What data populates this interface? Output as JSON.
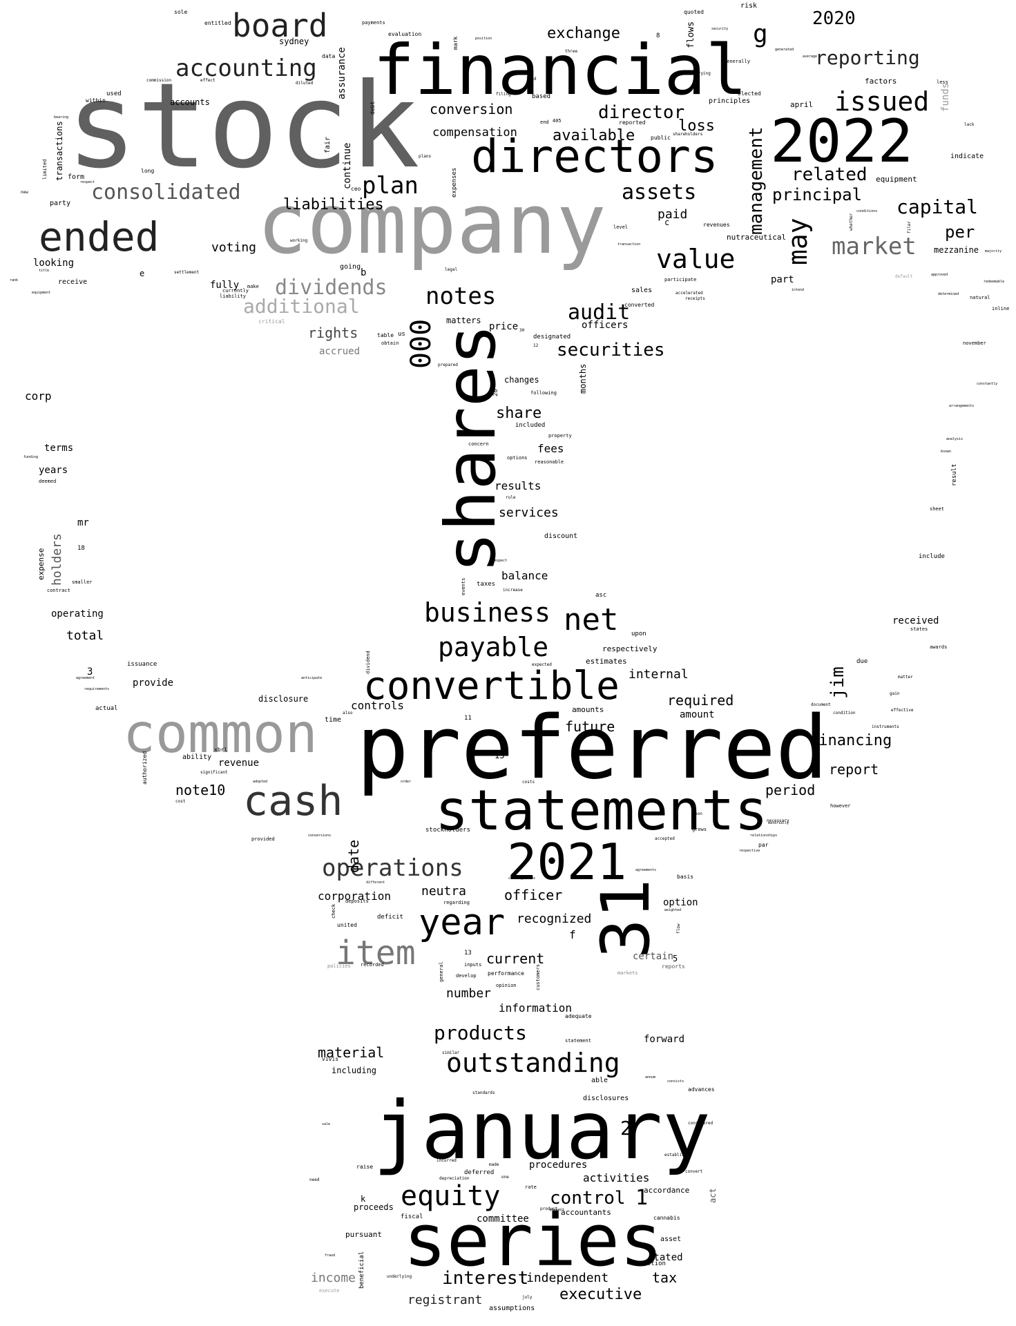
{
  "colors": {
    "background": "#ffffff",
    "text_black": "#000000",
    "text_dark": "#222222",
    "text_mid": "#666666",
    "text_light": "#999999"
  },
  "words": {
    "stock": "stock",
    "company": "company",
    "financial": "financial",
    "directors": "directors",
    "y2022": "2022",
    "preferred": "preferred",
    "january": "january",
    "series": "series",
    "shares": "shares",
    "statements": "statements",
    "y2021": "2021",
    "n31": "31",
    "common": "common",
    "convertible": "convertible",
    "cash": "cash",
    "ended": "ended",
    "board": "board",
    "accounting": "accounting",
    "consolidated": "consolidated",
    "plan": "plan",
    "liabilities": "liabilities",
    "dividends": "dividends",
    "additional": "additional",
    "notes": "notes",
    "value": "value",
    "market": "market",
    "may": "may",
    "management": "management",
    "issued": "issued",
    "reporting": "reporting",
    "y2020": "2020",
    "g": "g",
    "exchange": "exchange",
    "conversion": "conversion",
    "compensation": "compensation",
    "available": "available",
    "director": "director",
    "loss": "loss",
    "assets": "assets",
    "related": "related",
    "principal": "principal",
    "capital": "capital",
    "per": "per",
    "paid": "paid",
    "voting": "voting",
    "fully": "fully",
    "rights": "rights",
    "accrued": "accrued",
    "audit": "audit",
    "securities": "securities",
    "n000": "000",
    "business": "business",
    "net": "net",
    "payable": "payable",
    "item": "item",
    "year": "year",
    "operations": "operations",
    "equity": "equity",
    "outstanding": "outstanding",
    "products": "products",
    "material": "material",
    "control": "control",
    "interest": "interest",
    "executive": "executive",
    "registrant": "registrant",
    "income": "income",
    "tax": "tax",
    "independent": "independent",
    "financing": "financing",
    "report": "report",
    "period": "period",
    "jim": "jim",
    "required": "required",
    "amount": "amount",
    "internal": "internal",
    "future": "future",
    "controls": "controls",
    "disclosure": "disclosure",
    "note10": "note10",
    "revenue": "revenue",
    "date": "date",
    "corporation": "corporation",
    "neutra": "neutra",
    "officer": "officer",
    "recognized": "recognized",
    "current": "current",
    "number": "number",
    "information": "information",
    "forward": "forward",
    "procedures": "procedures",
    "activities": "activities",
    "committee": "committee",
    "proceeds": "proceeds",
    "stated": "stated",
    "mezzanine": "mezzanine",
    "part": "part",
    "sales": "sales",
    "corp": "corp",
    "terms": "terms",
    "years": "years",
    "holders": "holders",
    "mr": "mr",
    "operating": "operating",
    "total": "total",
    "provide": "provide",
    "results": "results",
    "services": "services",
    "share": "share",
    "fees": "fees",
    "balance": "balance",
    "months": "months",
    "changes": "changes",
    "officers": "officers",
    "price": "price",
    "matters": "matters",
    "looking": "looking",
    "accounts": "accounts",
    "continue": "continue",
    "assurance": "assurance",
    "sydney": "sydney",
    "received": "received",
    "option": "option",
    "certain": "certain",
    "including": "including",
    "accordance": "accordance",
    "accountants": "accountants",
    "transactions": "transactions",
    "expense": "expense",
    "funds": "funds",
    "nutraceutical": "nutraceutical",
    "principles": "principles",
    "factors": "factors",
    "april": "april",
    "equipment": "equipment",
    "indicate": "indicate",
    "risk": "risk",
    "quoted": "quoted",
    "flows": "flows",
    "mark": "mark",
    "evaluation": "evaluation",
    "payments": "payments",
    "entitled": "entitled",
    "sole": "sole",
    "data": "data",
    "used": "used",
    "within": "within",
    "form": "form",
    "long": "long",
    "party": "party",
    "receive": "receive",
    "fair": "fair",
    "ceo": "ceo",
    "debt": "debt",
    "based": "based",
    "table": "table",
    "us": "us",
    "obtain": "obtain",
    "designated": "designated",
    "included": "included",
    "options": "options",
    "reasonable": "reasonable",
    "concern": "concern",
    "discount": "discount",
    "taxes": "taxes",
    "events": "events",
    "asc": "asc",
    "estimates": "estimates",
    "respectively": "respectively",
    "upon": "upon",
    "amounts": "amounts",
    "due": "due",
    "awards": "awards",
    "states": "states",
    "include": "include",
    "sheet": "sheet",
    "result": "result",
    "november": "november",
    "inline": "inline",
    "natural": "natural",
    "stockholders": "stockholders",
    "time": "time",
    "ability": "ability",
    "xbrl": "xbrl",
    "authorized": "authorized",
    "issuance": "issuance",
    "actual": "actual",
    "deficit": "deficit",
    "united": "united",
    "deposits": "deposits",
    "regarding": "regarding",
    "vivis": "vivis",
    "able": "able",
    "disclosures": "disclosures",
    "advances": "advances",
    "raise": "raise",
    "deferred": "deferred",
    "fiscal": "fiscal",
    "pursuant": "pursuant",
    "beneficial": "beneficial",
    "assumptions": "assumptions",
    "cannabis": "cannabis",
    "asset": "asset",
    "section": "section",
    "act": "act",
    "reports": "reports",
    "basis": "basis",
    "performance": "performance",
    "opinion": "opinion",
    "customers": "customers",
    "inputs": "inputs",
    "develop": "develop",
    "general": "general",
    "check": "check",
    "recorded": "recorded",
    "policies": "policies",
    "markets": "markets",
    "f": "f",
    "k": "k",
    "b": "b",
    "c": "c",
    "e": "e",
    "n1": "1",
    "n2": "2",
    "n3": "3",
    "n5": "5",
    "n11": "11",
    "n13": "13",
    "n15": "15",
    "n18": "18",
    "n20": "20",
    "n30": "30",
    "n12": "12",
    "n8": "8",
    "n405": "405",
    "going": "going",
    "make": "make",
    "currently": "currently",
    "liability": "liability",
    "settlement": "settlement",
    "critical": "critical",
    "commission": "commission",
    "effect": "effect",
    "limited": "limited",
    "contract": "contract",
    "smaller": "smaller",
    "deemed": "deemed",
    "funding": "funding",
    "public": "public",
    "reported": "reported",
    "generally": "generally",
    "elected": "elected",
    "carrying": "carrying",
    "revenues": "revenues",
    "level": "level",
    "participate": "participate",
    "converted": "converted",
    "accelerated": "accelerated",
    "receipts": "receipts",
    "less": "less",
    "lack": "lack",
    "approved": "approved",
    "redeemable": "redeemable",
    "determined": "determined",
    "default": "default",
    "following": "following",
    "property": "property",
    "rule": "rule",
    "expenses": "expenses",
    "plans": "plans",
    "filing": "filing",
    "end": "end",
    "legal": "legal",
    "working": "working",
    "prepared": "prepared",
    "increase": "increase",
    "expect": "expect",
    "expected": "expected",
    "dividend": "dividend",
    "adequate": "adequate",
    "statement": "statement",
    "similar": "similar",
    "standards": "standards",
    "product": "product",
    "rate": "rate",
    "incurred": "incurred",
    "depreciation": "depreciation",
    "one": "one",
    "made": "made",
    "underlying": "underlying",
    "july": "july",
    "execute": "execute",
    "convert": "convert",
    "established": "established",
    "considered": "considered",
    "grows": "grows",
    "accepted": "accepted",
    "par": "par",
    "necessary": "necessary",
    "however": "however",
    "instruments": "instruments",
    "effective": "effective",
    "condition": "condition",
    "document": "document",
    "gain": "gain",
    "matter": "matter",
    "anticipate": "anticipate",
    "significant": "significant",
    "adopted": "adopted",
    "order": "order",
    "costs": "costs",
    "non": "non",
    "agreements": "agreements",
    "goods": "goods",
    "weighted": "weighted",
    "flow": "flow",
    "different": "different",
    "contingencies": "contingencies",
    "requirements": "requirements",
    "agreement": "agreement",
    "provided": "provided",
    "conversions": "conversions",
    "cost": "cost",
    "also": "also",
    "whether": "whether",
    "filer": "filer",
    "transaction": "transaction",
    "majority": "majority",
    "intend": "intend",
    "arrangements": "arrangements",
    "constantly": "constantly",
    "known": "known",
    "analysis": "analysis",
    "annum": "annum",
    "consists": "consists",
    "security": "security",
    "three": "three",
    "fund": "fund",
    "position": "position",
    "conditions": "conditions",
    "shareholders": "shareholders",
    "average": "average",
    "generated": "generated",
    "bearing": "bearing",
    "respect": "respect",
    "new": "new",
    "rank": "rank",
    "diluted": "diluted",
    "title": "title",
    "equipment2": "equipment",
    "prevent": "prevent",
    "sale": "sale",
    "need": "need",
    "fraud": "fraud",
    "materially": "materially",
    "respective": "respective",
    "relationships": "relationships",
    "reports2": "reports"
  }
}
